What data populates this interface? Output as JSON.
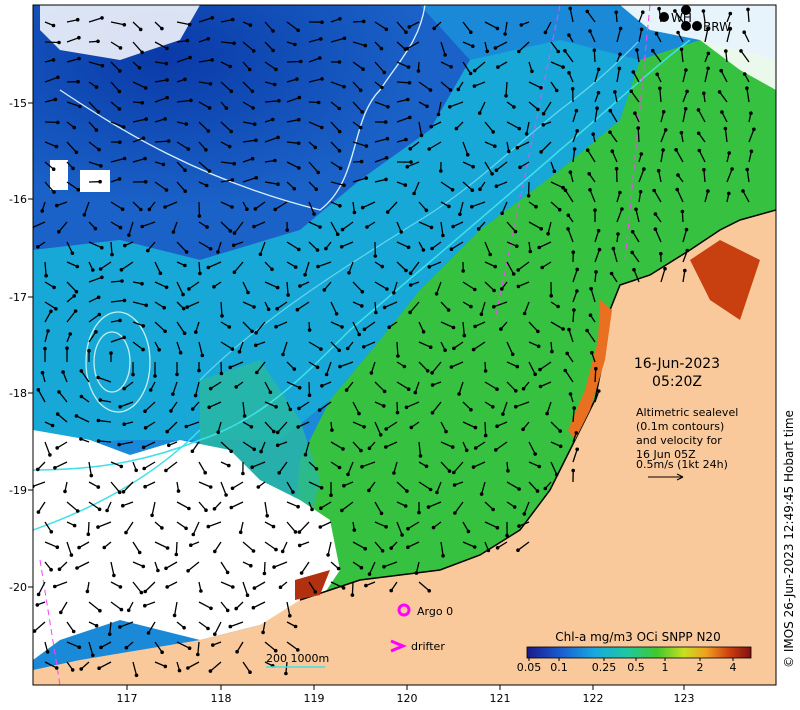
{
  "map": {
    "date": "16-Jun-2023",
    "time": "05:20Z",
    "legend_text": [
      "Altimetric sealevel",
      "(0.1m contours)",
      "and velocity for",
      "16 Jun 05Z",
      "0.5m/s (1kt 24h)"
    ],
    "x_ticks": [
      "117",
      "118",
      "119",
      "120",
      "121",
      "122",
      "123"
    ],
    "y_ticks": [
      "-15",
      "-16",
      "-17",
      "-18",
      "-19",
      "-20"
    ],
    "station_labels": [
      "WH",
      "BRW"
    ],
    "argo_label": "Argo 0",
    "drifter_label": "drifter",
    "scale_label": "200  1000m",
    "colorbar_title": "Chl-a mg/m3 OCi SNPP N20",
    "colorbar_ticks": [
      "0.05",
      "0.1",
      "0.25",
      "0.5",
      "1",
      "2",
      "4"
    ],
    "credit": "© IMOS 26-Jun-2023 12:49:45 Hobart time",
    "colors": {
      "land": "#f9c99b",
      "ocean_low": "#1546b0",
      "ocean_mid": "#1aa0d8",
      "ocean_high": "#30c24a",
      "contour": "#40e0e8",
      "argo": "#ff00ff",
      "drifter": "#ff00ff"
    }
  }
}
